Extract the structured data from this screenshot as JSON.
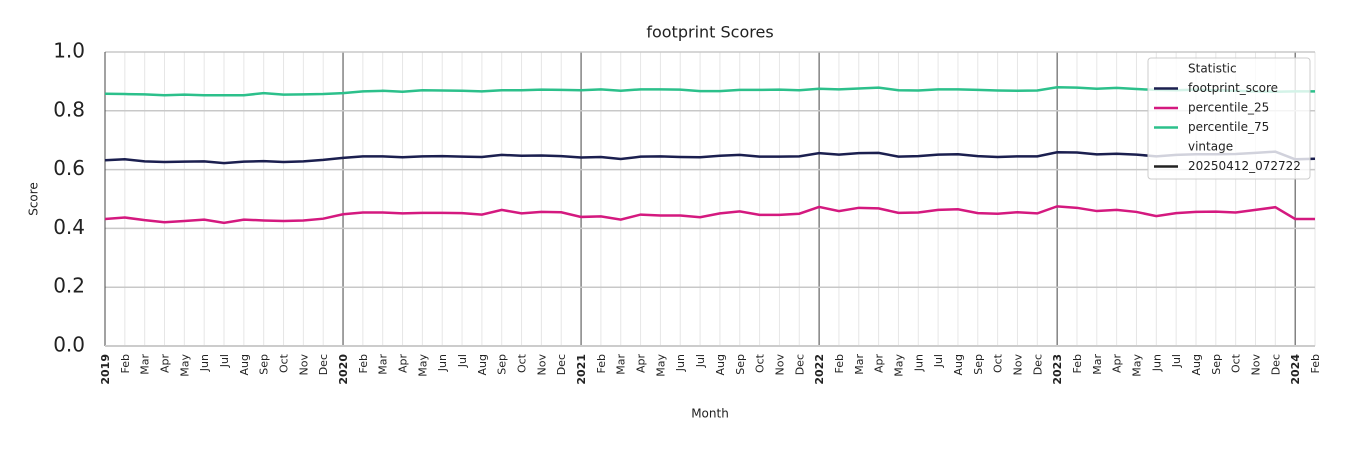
{
  "chart_data": {
    "type": "line",
    "title": "footprint Scores",
    "x_label": "Month",
    "y_label": "Score",
    "categories": [
      "2019",
      "Feb",
      "Mar",
      "Apr",
      "May",
      "Jun",
      "Jul",
      "Aug",
      "Sep",
      "Oct",
      "Nov",
      "Dec",
      "2020",
      "Feb",
      "Mar",
      "Apr",
      "May",
      "Jun",
      "Jul",
      "Aug",
      "Sep",
      "Oct",
      "Nov",
      "Dec",
      "2021",
      "Feb",
      "Mar",
      "Apr",
      "May",
      "Jun",
      "Jul",
      "Aug",
      "Sep",
      "Oct",
      "Nov",
      "Dec",
      "2022",
      "Feb",
      "Mar",
      "Apr",
      "May",
      "Jun",
      "Jul",
      "Aug",
      "Sep",
      "Oct",
      "Nov",
      "Dec",
      "2023",
      "Feb",
      "Mar",
      "Apr",
      "May",
      "Jun",
      "Jul",
      "Aug",
      "Sep",
      "Oct",
      "Nov",
      "Dec",
      "2024",
      "Feb"
    ],
    "series": [
      {
        "name": "footprint_score",
        "color": "#1b1f4f",
        "values": [
          0.632,
          0.635,
          0.628,
          0.626,
          0.627,
          0.628,
          0.622,
          0.627,
          0.629,
          0.626,
          0.628,
          0.633,
          0.64,
          0.645,
          0.645,
          0.642,
          0.645,
          0.646,
          0.644,
          0.643,
          0.65,
          0.647,
          0.648,
          0.646,
          0.641,
          0.643,
          0.636,
          0.644,
          0.645,
          0.643,
          0.642,
          0.647,
          0.65,
          0.644,
          0.644,
          0.645,
          0.656,
          0.651,
          0.656,
          0.657,
          0.644,
          0.646,
          0.651,
          0.652,
          0.646,
          0.643,
          0.645,
          0.645,
          0.659,
          0.658,
          0.652,
          0.654,
          0.651,
          0.645,
          0.65,
          0.652,
          0.652,
          0.653,
          0.657,
          0.661,
          0.635,
          0.637
        ]
      },
      {
        "name": "percentile_25",
        "color": "#d4197f",
        "values": [
          0.432,
          0.437,
          0.428,
          0.421,
          0.425,
          0.43,
          0.419,
          0.43,
          0.427,
          0.425,
          0.427,
          0.433,
          0.448,
          0.454,
          0.454,
          0.451,
          0.453,
          0.453,
          0.452,
          0.447,
          0.463,
          0.451,
          0.456,
          0.455,
          0.439,
          0.441,
          0.43,
          0.447,
          0.444,
          0.444,
          0.438,
          0.451,
          0.458,
          0.446,
          0.446,
          0.45,
          0.473,
          0.459,
          0.47,
          0.468,
          0.453,
          0.454,
          0.463,
          0.465,
          0.452,
          0.45,
          0.455,
          0.451,
          0.475,
          0.47,
          0.459,
          0.463,
          0.456,
          0.442,
          0.452,
          0.456,
          0.457,
          0.454,
          0.463,
          0.472,
          0.432,
          0.432
        ]
      },
      {
        "name": "percentile_75",
        "color": "#2cc08b",
        "values": [
          0.858,
          0.857,
          0.856,
          0.853,
          0.855,
          0.853,
          0.853,
          0.853,
          0.86,
          0.855,
          0.856,
          0.857,
          0.86,
          0.866,
          0.868,
          0.865,
          0.87,
          0.869,
          0.868,
          0.866,
          0.87,
          0.87,
          0.872,
          0.871,
          0.87,
          0.873,
          0.868,
          0.873,
          0.873,
          0.872,
          0.867,
          0.867,
          0.871,
          0.871,
          0.872,
          0.87,
          0.875,
          0.873,
          0.876,
          0.879,
          0.87,
          0.869,
          0.873,
          0.873,
          0.871,
          0.869,
          0.868,
          0.869,
          0.88,
          0.879,
          0.875,
          0.878,
          0.874,
          0.871,
          0.87,
          0.872,
          0.87,
          0.868,
          0.866,
          0.865,
          0.866,
          0.866
        ]
      }
    ],
    "ylim": [
      0,
      1
    ],
    "yticks": [
      {
        "value": 0,
        "label": "0.0"
      },
      {
        "value": 0.2,
        "label": "0.2"
      },
      {
        "value": 0.4,
        "label": "0.4"
      },
      {
        "value": 0.6,
        "label": "0.6"
      },
      {
        "value": 0.8,
        "label": "0.8"
      },
      {
        "value": 1,
        "label": "1.0"
      }
    ],
    "grid": true,
    "legend": {
      "position": "upper right",
      "title": "Statistic",
      "style_title": "vintage",
      "style_entries": [
        {
          "name": "20250412_072722",
          "color": "#222222"
        }
      ]
    }
  }
}
